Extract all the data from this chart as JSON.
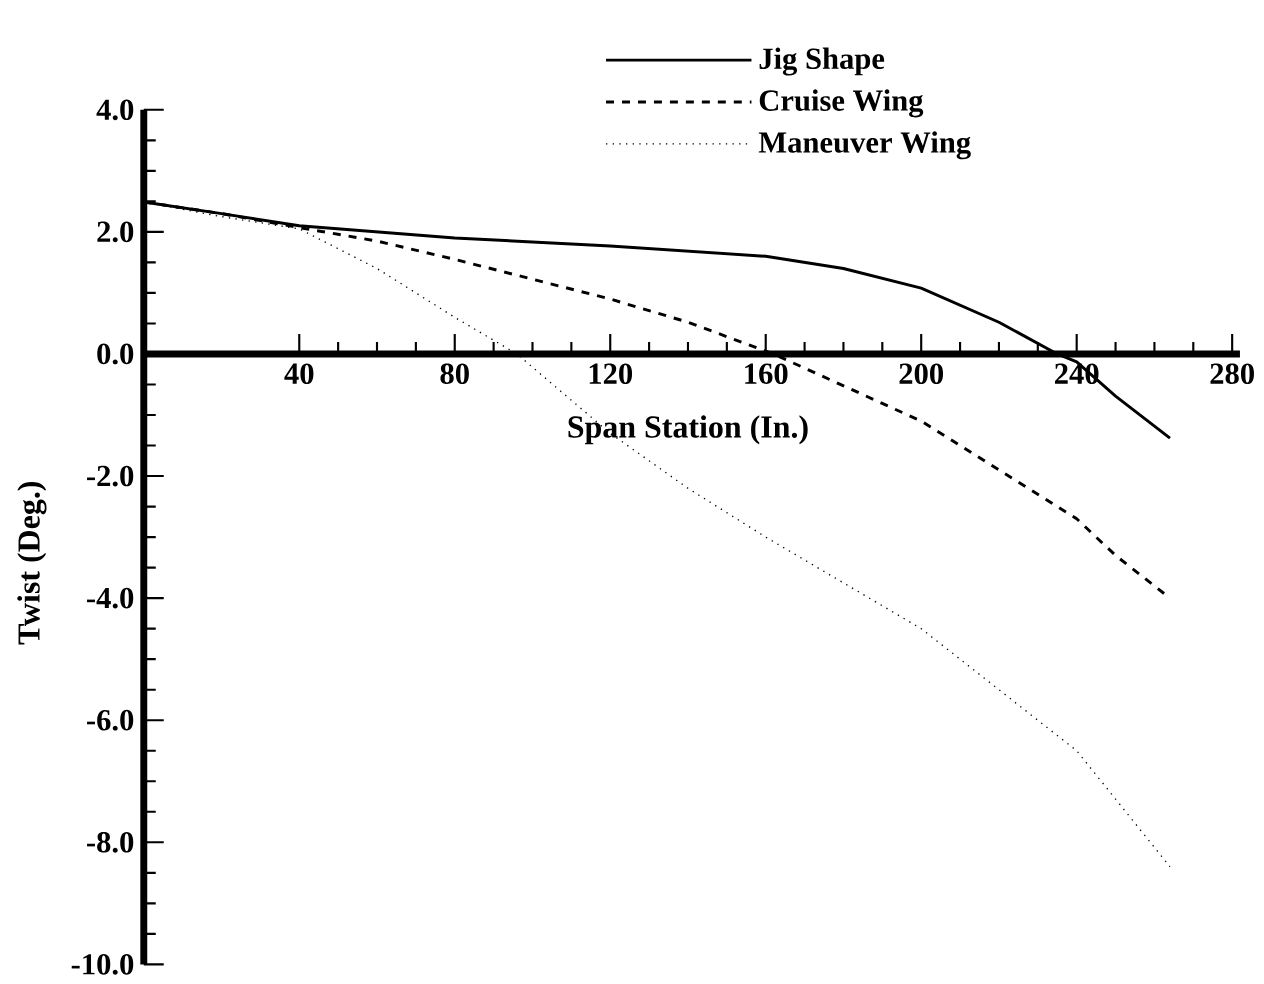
{
  "chart_data": {
    "type": "line",
    "xlabel": "Span Station (In.)",
    "ylabel": "Twist (Deg.)",
    "xlim": [
      0,
      282
    ],
    "ylim": [
      -10,
      4
    ],
    "xticks": [
      40,
      80,
      120,
      160,
      200,
      240,
      280
    ],
    "yticks": [
      {
        "value": 4,
        "label": "4.0"
      },
      {
        "value": 2,
        "label": "2.0"
      },
      {
        "value": 0,
        "label": "0.0"
      },
      {
        "value": -2,
        "label": "-2.0"
      },
      {
        "value": -4,
        "label": "-4.0"
      },
      {
        "value": -6,
        "label": "-6.0"
      },
      {
        "value": -8,
        "label": "-8.0"
      },
      {
        "value": -10,
        "label": "-10.0"
      }
    ],
    "legend": "top",
    "grid": false,
    "series": [
      {
        "name": "Jig Shape",
        "color": "#000000",
        "line_style": "solid",
        "x": [
          0,
          20,
          40,
          60,
          80,
          120,
          160,
          180,
          200,
          220,
          235,
          240,
          250,
          264
        ],
        "values": [
          2.49,
          2.3,
          2.1,
          2.0,
          1.9,
          1.77,
          1.6,
          1.4,
          1.08,
          0.52,
          0,
          -0.13,
          -0.69,
          -1.38
        ]
      },
      {
        "name": "Cruise Wing",
        "color": "#000000",
        "line_style": "dashed",
        "x": [
          0,
          20,
          40,
          60,
          80,
          120,
          140,
          162,
          200,
          220,
          240,
          250,
          264
        ],
        "values": [
          2.49,
          2.3,
          2.07,
          1.85,
          1.55,
          0.9,
          0.52,
          0,
          -1.1,
          -1.9,
          -2.7,
          -3.3,
          -4.0
        ]
      },
      {
        "name": "Maneuver Wing",
        "color": "#000000",
        "line_style": "dotted",
        "x": [
          0,
          20,
          40,
          60,
          80,
          96,
          120,
          140,
          160,
          200,
          220,
          240,
          264
        ],
        "values": [
          2.49,
          2.25,
          2.05,
          1.4,
          0.6,
          0,
          -1.3,
          -2.2,
          -3.0,
          -4.5,
          -5.5,
          -6.5,
          -8.4
        ]
      }
    ]
  }
}
